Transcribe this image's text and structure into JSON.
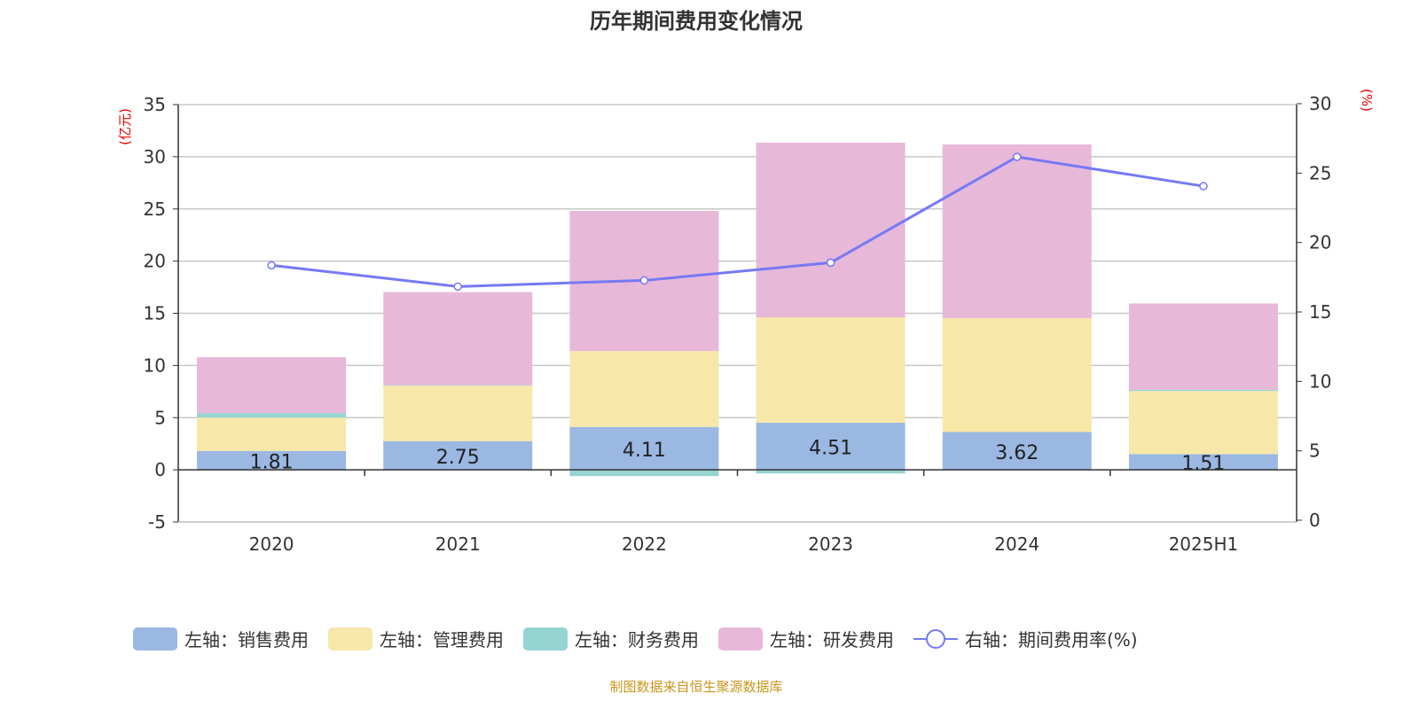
{
  "title": "历年期间费用变化情况",
  "source": "制图数据来自恒生聚源数据库",
  "chart_data": {
    "type": "bar",
    "stacked": true,
    "title": "历年期间费用变化情况",
    "categories": [
      "2020",
      "2021",
      "2022",
      "2023",
      "2024",
      "2025H1"
    ],
    "left_axis": {
      "unit": "(亿元)",
      "ylim": [
        -5,
        35
      ],
      "ticks": [
        -5,
        0,
        5,
        10,
        15,
        20,
        25,
        30,
        35
      ]
    },
    "right_axis": {
      "unit": "(%)",
      "ylim": [
        0,
        30
      ],
      "ticks": [
        0,
        5,
        10,
        15,
        20,
        25,
        30
      ]
    },
    "grid": true,
    "legend_position": "bottom",
    "series": [
      {
        "name": "左轴：销售费用",
        "axis": "left",
        "type": "bar",
        "color": "#9bb8e2",
        "values": [
          1.81,
          2.75,
          4.11,
          4.51,
          3.62,
          1.51
        ],
        "show_labels": true
      },
      {
        "name": "左轴：管理费用",
        "axis": "left",
        "type": "bar",
        "color": "#f7e7a9",
        "values": [
          3.2,
          5.32,
          7.27,
          10.1,
          10.91,
          6.05
        ]
      },
      {
        "name": "左轴：财务费用",
        "axis": "left",
        "type": "bar",
        "color": "#95d4d2",
        "values": [
          0.43,
          0.04,
          -0.6,
          -0.35,
          -0.05,
          0.12
        ]
      },
      {
        "name": "左轴：研发费用",
        "axis": "left",
        "type": "bar",
        "color": "#e7b8d8",
        "values": [
          5.35,
          8.92,
          13.43,
          16.74,
          16.65,
          8.26
        ]
      },
      {
        "name": "右轴：期间费用率(%)",
        "axis": "right",
        "type": "line",
        "color": "#7579f5",
        "values": [
          18.36,
          16.83,
          17.27,
          18.55,
          26.17,
          24.06
        ]
      }
    ]
  }
}
